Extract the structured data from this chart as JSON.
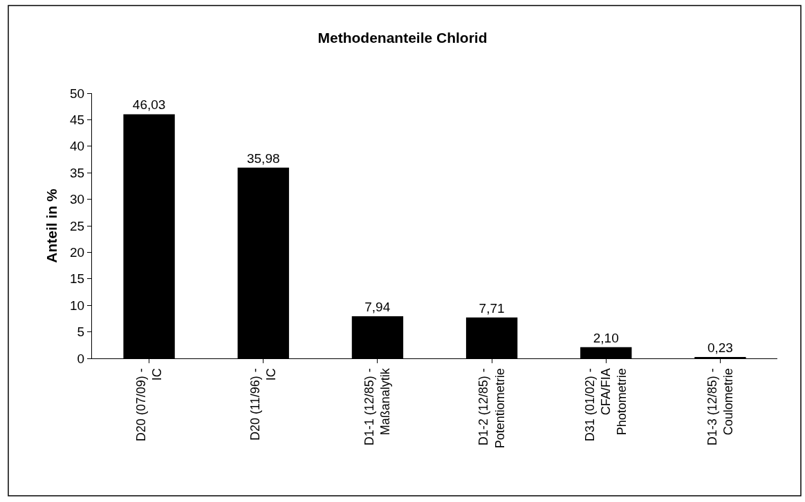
{
  "chart_data": {
    "type": "bar",
    "title": "Methodenanteile Chlorid",
    "ylabel": "Anteil in %",
    "categories": [
      "D20 (07/09) -\nIC",
      "D20 (11/96) -\nIC",
      "D1-1 (12/85) -\nMaßanalytik",
      "D1-2 (12/85) -\nPotentiometrie",
      "D31 (01/02) -\nCFA/FIA\nPhotometrie",
      "D1-3 (12/85) -\nCoulometrie"
    ],
    "values": [
      46.03,
      35.98,
      7.94,
      7.71,
      2.1,
      0.23
    ],
    "value_labels": [
      "46,03",
      "35,98",
      "7,94",
      "7,71",
      "2,10",
      "0,23"
    ],
    "color": "#000000",
    "ylim": [
      0,
      50
    ],
    "yticks": [
      0,
      5,
      10,
      15,
      20,
      25,
      30,
      35,
      40,
      45,
      50
    ],
    "grid": false,
    "legend": false
  }
}
